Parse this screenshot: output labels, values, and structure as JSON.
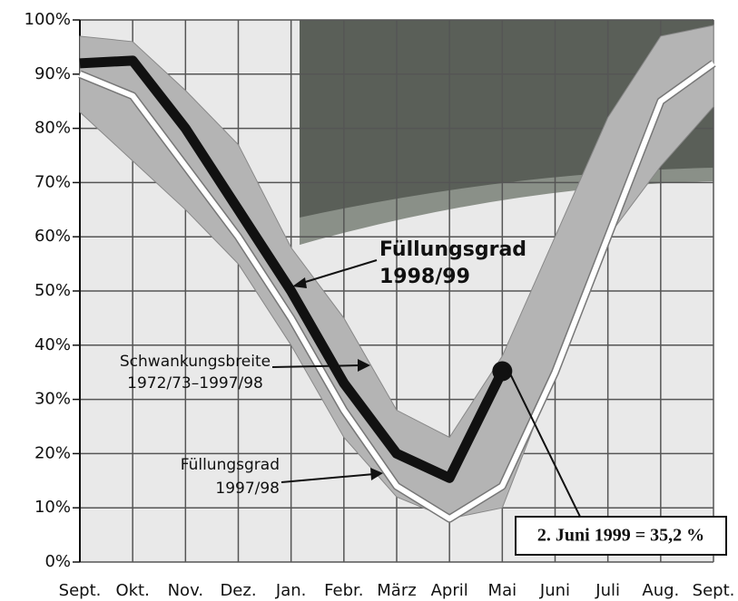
{
  "chart_data": {
    "type": "line",
    "categories": [
      "Sept.",
      "Okt.",
      "Nov.",
      "Dez.",
      "Jan.",
      "Febr.",
      "März",
      "April",
      "Mai",
      "Juni",
      "Juli",
      "Aug.",
      "Sept."
    ],
    "series": [
      {
        "color": "#111111",
        "values": [
          92,
          92.5,
          80,
          65,
          50,
          33,
          20,
          15.5,
          35.2,
          null,
          null,
          null,
          null
        ]
      },
      {
        "color": "#ffffff",
        "values": [
          90,
          86,
          73,
          60,
          45,
          28,
          14,
          8,
          14,
          35,
          60,
          85,
          92
        ]
      }
    ],
    "band": {
      "color": "#b4b4b4",
      "upper": [
        97,
        96,
        87,
        77,
        58,
        45,
        28,
        23,
        38,
        60,
        82,
        97,
        99
      ],
      "lower": [
        83,
        74,
        65,
        55,
        40,
        23,
        12,
        8,
        10,
        35,
        60,
        73,
        84
      ]
    },
    "annotations": [
      {
        "lines": [
          "Füllungsgrad",
          "1998/99"
        ]
      },
      {
        "lines": [
          "Schwankungsbreite",
          "1972/73–1997/98"
        ]
      },
      {
        "lines": [
          "Füllungsgrad",
          "1997/98"
        ]
      },
      {
        "lines": [
          "2. Juni 1999 = 35,2 %"
        ]
      }
    ],
    "ylim": [
      0,
      100
    ],
    "yticks": [
      {
        "value": 0,
        "label": "0%"
      },
      {
        "value": 10,
        "label": "10%"
      },
      {
        "value": 20,
        "label": "20%"
      },
      {
        "value": 30,
        "label": "30%"
      },
      {
        "value": 40,
        "label": "40%"
      },
      {
        "value": 50,
        "label": "50%"
      },
      {
        "value": 60,
        "label": "60%"
      },
      {
        "value": 70,
        "label": "70%"
      },
      {
        "value": 80,
        "label": "80%"
      },
      {
        "value": 90,
        "label": "90%"
      },
      {
        "value": 100,
        "label": "100%"
      }
    ],
    "grid": true
  }
}
